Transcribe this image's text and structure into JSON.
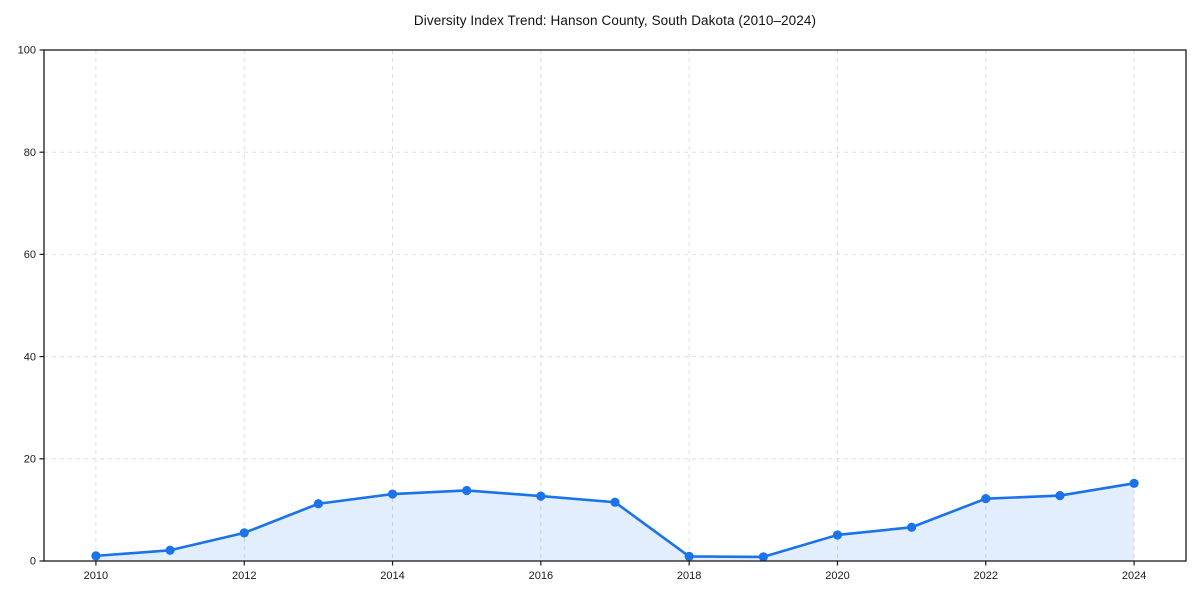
{
  "page": {
    "background": "#ffffff"
  },
  "chart_data": {
    "type": "line",
    "title": "Diversity Index Trend: Hanson County, South Dakota (2010–2024)",
    "x": [
      2010,
      2011,
      2012,
      2013,
      2014,
      2015,
      2016,
      2017,
      2018,
      2019,
      2020,
      2021,
      2022,
      2023,
      2024
    ],
    "values": [
      1.0,
      2.1,
      5.5,
      11.2,
      13.1,
      13.8,
      12.7,
      11.5,
      0.9,
      0.8,
      5.1,
      6.6,
      12.2,
      12.8,
      15.2
    ],
    "xlabel": "",
    "ylabel": "",
    "xlim": [
      2009.3,
      2024.7
    ],
    "ylim": [
      0,
      100
    ],
    "xticks": [
      2010,
      2012,
      2014,
      2016,
      2018,
      2020,
      2022,
      2024
    ],
    "xtick_labels": [
      "2010",
      "2012",
      "2014",
      "2016",
      "2018",
      "2020",
      "2022",
      "2024"
    ],
    "yticks": [
      0,
      20,
      40,
      60,
      80,
      100
    ],
    "ytick_labels": [
      "0",
      "20",
      "40",
      "60",
      "80",
      "100"
    ],
    "grid": true,
    "grid_style": "dashed",
    "legend": "none",
    "marker": "circle",
    "area_fill": true,
    "colors": {
      "line": "#1a73e8",
      "marker": "#1a73e8",
      "fill": "#1a73e8",
      "fill_opacity": 0.12,
      "grid": "#dddddd",
      "spine": "#1a1a1a",
      "tick_label": "#1a1a1a",
      "title": "#111111",
      "background": "#ffffff"
    }
  }
}
